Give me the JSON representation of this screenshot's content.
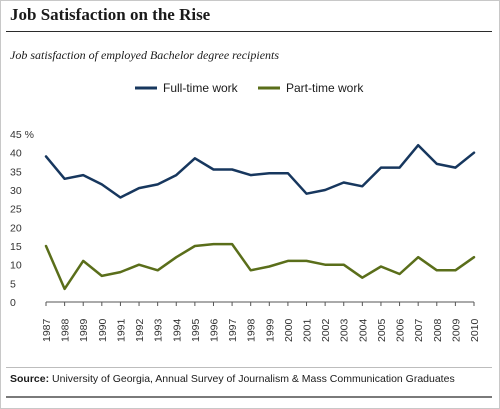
{
  "title": "Job Satisfaction on the Rise",
  "subtitle": "Job satisfaction of employed Bachelor degree recipients",
  "source": {
    "label": "Source:",
    "text": "University of Georgia, Annual Survey of Journalism & Mass Communication Graduates"
  },
  "chart_data": {
    "type": "line",
    "x": [
      1987,
      1988,
      1989,
      1990,
      1991,
      1992,
      1993,
      1994,
      1995,
      1996,
      1997,
      1998,
      1999,
      2000,
      2001,
      2002,
      2003,
      2004,
      2005,
      2006,
      2007,
      2008,
      2009,
      2010
    ],
    "x_tick_labels": [
      "1987",
      "1988",
      "1989",
      "1990",
      "1991",
      "1992",
      "1993",
      "1994",
      "1995",
      "1996",
      "1997",
      "1998",
      "1999",
      "2000",
      "2001",
      "2002",
      "2003",
      "2004",
      "2005",
      "2006",
      "2007",
      "2008",
      "2009",
      "2010"
    ],
    "series": [
      {
        "name": "Full-time work",
        "color": "#17375e",
        "values": [
          39,
          33,
          34,
          31.5,
          28,
          30.5,
          31.5,
          34,
          38.5,
          35.5,
          35.5,
          34,
          34.5,
          34.5,
          29,
          30,
          32,
          31,
          36,
          36,
          42,
          37,
          36,
          40
        ]
      },
      {
        "name": "Part-time work",
        "color": "#5a6e1a",
        "values": [
          15,
          3.5,
          11,
          7,
          8,
          10,
          8.5,
          12,
          15,
          15.5,
          15.5,
          8.5,
          9.5,
          11,
          11,
          10,
          10,
          6.5,
          9.5,
          7.5,
          12,
          8.5,
          8.5,
          12
        ]
      }
    ],
    "ylim": [
      0,
      45
    ],
    "y_ticks": [
      0,
      5,
      10,
      15,
      20,
      25,
      30,
      35,
      40,
      45
    ],
    "y_tick_labels": [
      "0",
      "5",
      "10",
      "15",
      "20",
      "25",
      "30",
      "35",
      "40",
      "45 %"
    ],
    "grid": false,
    "legend_position": "top"
  }
}
